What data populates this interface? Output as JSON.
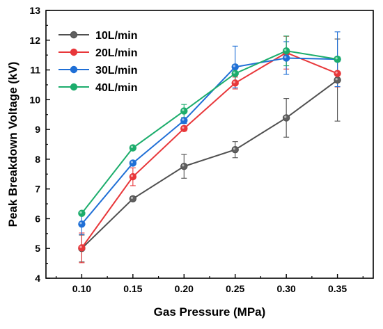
{
  "chart_data": {
    "type": "line",
    "title": "",
    "xlabel": "Gas Pressure (MPa)",
    "ylabel": "Peak Breakdown Voltage (kV)",
    "x": [
      0.1,
      0.15,
      0.2,
      0.25,
      0.3,
      0.35
    ],
    "x_tick_labels": [
      "0.10",
      "0.15",
      "0.20",
      "0.25",
      "0.30",
      "0.35"
    ],
    "xlim": [
      0.065,
      0.385
    ],
    "ylim": [
      4,
      13
    ],
    "y_ticks": [
      4,
      5,
      6,
      7,
      8,
      9,
      10,
      11,
      12,
      13
    ],
    "y_tick_labels": [
      "4",
      "5",
      "6",
      "7",
      "8",
      "9",
      "10",
      "11",
      "12",
      "13"
    ],
    "grid": false,
    "legend_position": "top-left",
    "series": [
      {
        "name": "10L/min",
        "color": "#505050",
        "fill": "#606060",
        "values": [
          5.0,
          6.67,
          7.76,
          8.32,
          9.39,
          10.66
        ],
        "error": [
          0.45,
          0.0,
          0.4,
          0.27,
          0.65,
          1.38
        ]
      },
      {
        "name": "20L/min",
        "color": "#e8373a",
        "fill": "#e8373a",
        "values": [
          5.02,
          7.41,
          9.03,
          10.56,
          11.58,
          10.88
        ],
        "error": [
          0.5,
          0.3,
          0.08,
          0.2,
          0.55,
          0.45
        ]
      },
      {
        "name": "30L/min",
        "color": "#1f6fd6",
        "fill": "#1f6fd6",
        "values": [
          5.82,
          7.87,
          9.3,
          11.1,
          11.4,
          11.36
        ],
        "error": [
          0.35,
          0.05,
          0.1,
          0.7,
          0.55,
          0.92
        ]
      },
      {
        "name": "40L/min",
        "color": "#1cad6c",
        "fill": "#1cad6c",
        "values": [
          6.18,
          8.38,
          9.62,
          10.88,
          11.64,
          11.36
        ],
        "error": [
          0.05,
          0.07,
          0.22,
          0.3,
          0.5,
          0.08
        ]
      }
    ]
  }
}
